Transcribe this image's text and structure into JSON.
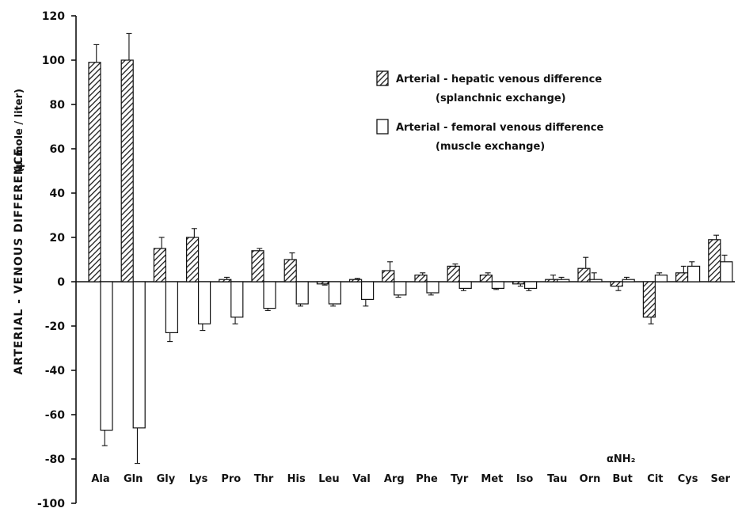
{
  "chart_data": {
    "type": "bar",
    "title": "",
    "ylabel": "ARTERIAL - VENOUS DIFFERENCE",
    "ylabel_unit": "(μ mole / liter)",
    "xlabel": "",
    "ylim": [
      -100,
      120
    ],
    "yticks": [
      "120",
      "100",
      "80",
      "60",
      "40",
      "20",
      "0",
      "-20",
      "-40",
      "-60",
      "-80",
      "-100"
    ],
    "categories": [
      "Ala",
      "Gln",
      "Gly",
      "Lys",
      "Pro",
      "Thr",
      "His",
      "Leu",
      "Val",
      "Arg",
      "Phe",
      "Tyr",
      "Met",
      "Iso",
      "Tau",
      "Orn",
      "But",
      "Cit",
      "Cys",
      "Ser"
    ],
    "category_prefix": {
      "index": 16,
      "text": "αNH₂"
    },
    "series": [
      {
        "name": "Arterial - hepatic venous difference",
        "name_line2": "(splanchnic exchange)",
        "fill": "hatched",
        "color": "#333333",
        "values": [
          99,
          100,
          15,
          20,
          1,
          14,
          10,
          -1,
          1,
          5,
          3,
          7,
          3,
          -1,
          1,
          6,
          -2,
          -16,
          4,
          19
        ],
        "errors": [
          8,
          12,
          5,
          4,
          1,
          1,
          3,
          0.5,
          0.5,
          4,
          1,
          1,
          1,
          1,
          2,
          5,
          2,
          3,
          3,
          2
        ]
      },
      {
        "name": "Arterial - femoral venous difference",
        "name_line2": "(muscle exchange)",
        "fill": "white",
        "color": "#ffffff",
        "values": [
          -67,
          -66,
          -23,
          -19,
          -16,
          -12,
          -10,
          -10,
          -8,
          -6,
          -5,
          -3,
          -3,
          -3,
          1,
          1,
          1,
          3,
          7,
          9
        ],
        "errors": [
          7,
          16,
          4,
          3,
          3,
          1,
          1,
          1,
          3,
          1,
          1,
          1,
          0.5,
          1,
          1,
          3,
          1,
          1,
          2,
          3
        ]
      }
    ],
    "grid": false,
    "legend_position": "top-right"
  }
}
